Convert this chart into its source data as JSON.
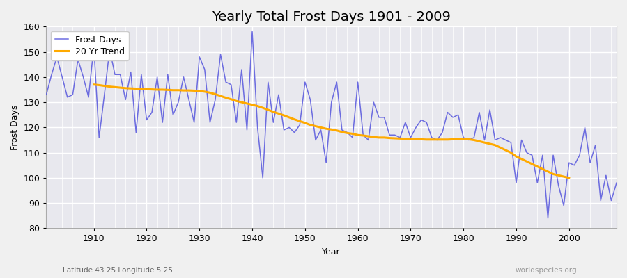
{
  "title": "Yearly Total Frost Days 1901 - 2009",
  "xlabel": "Year",
  "ylabel": "Frost Days",
  "subtitle_left": "Latitude 43.25 Longitude 5.25",
  "subtitle_right": "worldspecies.org",
  "years": [
    1901,
    1902,
    1903,
    1904,
    1905,
    1906,
    1907,
    1908,
    1909,
    1910,
    1911,
    1912,
    1913,
    1914,
    1915,
    1916,
    1917,
    1918,
    1919,
    1920,
    1921,
    1922,
    1923,
    1924,
    1925,
    1926,
    1927,
    1928,
    1929,
    1930,
    1931,
    1932,
    1933,
    1934,
    1935,
    1936,
    1937,
    1938,
    1939,
    1940,
    1941,
    1942,
    1943,
    1944,
    1945,
    1946,
    1947,
    1948,
    1949,
    1950,
    1951,
    1952,
    1953,
    1954,
    1955,
    1956,
    1957,
    1958,
    1959,
    1960,
    1961,
    1962,
    1963,
    1964,
    1965,
    1966,
    1967,
    1968,
    1969,
    1970,
    1971,
    1972,
    1973,
    1974,
    1975,
    1976,
    1977,
    1978,
    1979,
    1980,
    1981,
    1982,
    1983,
    1984,
    1985,
    1986,
    1987,
    1988,
    1989,
    1990,
    1991,
    1992,
    1993,
    1994,
    1995,
    1996,
    1997,
    1998,
    1999,
    2000,
    2001,
    2002,
    2003,
    2004,
    2005,
    2006,
    2007,
    2008,
    2009
  ],
  "frost_days": [
    133,
    141,
    148,
    140,
    132,
    133,
    147,
    140,
    132,
    152,
    116,
    133,
    151,
    141,
    141,
    131,
    142,
    118,
    141,
    123,
    126,
    140,
    122,
    141,
    125,
    130,
    140,
    131,
    122,
    148,
    143,
    122,
    131,
    149,
    138,
    137,
    122,
    143,
    119,
    158,
    120,
    100,
    138,
    122,
    133,
    119,
    120,
    118,
    121,
    138,
    131,
    115,
    119,
    106,
    130,
    138,
    119,
    118,
    116,
    138,
    117,
    115,
    130,
    124,
    124,
    117,
    117,
    116,
    122,
    116,
    120,
    123,
    122,
    116,
    115,
    118,
    126,
    124,
    125,
    116,
    115,
    116,
    126,
    115,
    127,
    115,
    116,
    115,
    114,
    98,
    115,
    110,
    109,
    98,
    109,
    84,
    109,
    97,
    89,
    106,
    105,
    109,
    120,
    106,
    113,
    91,
    101,
    91,
    98
  ],
  "trend_years": [
    1910,
    1911,
    1912,
    1913,
    1914,
    1915,
    1916,
    1917,
    1918,
    1919,
    1920,
    1921,
    1922,
    1923,
    1924,
    1925,
    1926,
    1927,
    1928,
    1929,
    1930,
    1931,
    1932,
    1933,
    1934,
    1935,
    1936,
    1937,
    1938,
    1939,
    1940,
    1941,
    1942,
    1943,
    1944,
    1945,
    1946,
    1947,
    1948,
    1949,
    1950,
    1951,
    1952,
    1953,
    1954,
    1955,
    1956,
    1957,
    1958,
    1959,
    1960,
    1961,
    1962,
    1963,
    1964,
    1965,
    1966,
    1967,
    1968,
    1969,
    1970,
    1971,
    1972,
    1973,
    1974,
    1975,
    1976,
    1977,
    1978,
    1979,
    1980,
    1981,
    1982,
    1983,
    1984,
    1985,
    1986,
    1987,
    1988,
    1989,
    1990,
    1991,
    1992,
    1993,
    1994,
    1995,
    1996,
    1997,
    1998,
    1999,
    2000
  ],
  "trend_values": [
    137.0,
    136.8,
    136.5,
    136.2,
    136.0,
    135.8,
    135.6,
    135.5,
    135.4,
    135.3,
    135.2,
    135.1,
    135.0,
    135.0,
    134.9,
    134.8,
    134.8,
    134.7,
    134.7,
    134.6,
    134.5,
    134.2,
    133.8,
    133.2,
    132.5,
    131.8,
    131.2,
    130.5,
    130.0,
    129.5,
    129.0,
    128.5,
    127.8,
    127.0,
    126.2,
    125.5,
    124.8,
    124.0,
    123.2,
    122.5,
    121.8,
    121.0,
    120.5,
    120.0,
    119.5,
    119.2,
    118.8,
    118.2,
    117.8,
    117.5,
    117.0,
    116.8,
    116.5,
    116.2,
    116.0,
    116.0,
    115.8,
    115.7,
    115.6,
    115.5,
    115.5,
    115.4,
    115.3,
    115.2,
    115.2,
    115.2,
    115.2,
    115.2,
    115.3,
    115.3,
    115.5,
    115.3,
    115.0,
    114.5,
    114.0,
    113.5,
    113.0,
    112.0,
    111.0,
    110.0,
    108.5,
    107.5,
    106.5,
    105.5,
    104.5,
    103.5,
    102.5,
    101.5,
    101.0,
    100.5,
    100.0
  ],
  "line_color": "#5555dd",
  "line_alpha": 0.85,
  "trend_color": "#ffaa00",
  "bg_color": "#f0f0f0",
  "plot_bg": "#e8e8ee",
  "ylim": [
    80,
    160
  ],
  "yticks": [
    80,
    90,
    100,
    110,
    120,
    130,
    140,
    150,
    160
  ],
  "xlim_left": 1901,
  "xlim_right": 2009,
  "grid_color": "#ffffff",
  "grid_linewidth": 1.0,
  "title_fontsize": 14,
  "axis_fontsize": 9,
  "legend_fontsize": 9,
  "legend_loc": "upper left"
}
